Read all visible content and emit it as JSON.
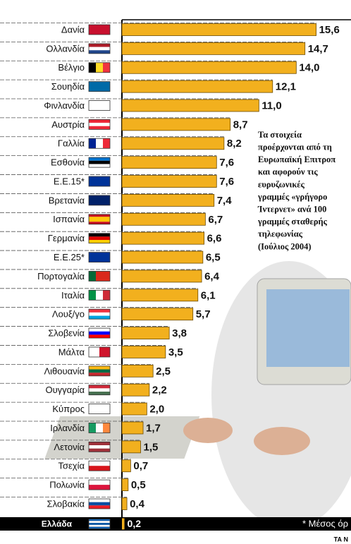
{
  "chart_data": {
    "type": "hbar",
    "categories": [
      "Δανία",
      "Ολλανδία",
      "Βέλγιο",
      "Σουηδία",
      "Φινλανδία",
      "Αυστρία",
      "Γαλλία",
      "Εσθονία",
      "Ε.Ε.15*",
      "Βρετανία",
      "Ισπανία",
      "Γερμανία",
      "Ε.Ε.25*",
      "Πορτογαλία",
      "Ιταλία",
      "Λουξ/γο",
      "Σλοβενία",
      "Μάλτα",
      "Λιθουανία",
      "Ουγγαρία",
      "Κύπρος",
      "Ιρλανδία",
      "Λετονία",
      "Τσεχία",
      "Πολωνία",
      "Σλοβακία"
    ],
    "values": [
      15.6,
      14.7,
      14.0,
      12.1,
      11.0,
      8.7,
      8.2,
      7.6,
      7.6,
      7.4,
      6.7,
      6.6,
      6.5,
      6.4,
      6.1,
      5.7,
      3.8,
      3.5,
      2.5,
      2.2,
      2.0,
      1.7,
      1.5,
      0.7,
      0.5,
      0.4
    ],
    "value_labels": [
      "15,6",
      "14,7",
      "14,0",
      "12,1",
      "11,0",
      "8,7",
      "8,2",
      "7,6",
      "7,6",
      "7,4",
      "6,7",
      "6,6",
      "6,5",
      "6,4",
      "6,1",
      "5,7",
      "3,8",
      "3,5",
      "2,5",
      "2,2",
      "2,0",
      "1,7",
      "1,5",
      "0,7",
      "0,5",
      "0,4"
    ],
    "highlight": {
      "category": "Ελλάδα",
      "value": 0.2,
      "value_label": "0,2"
    },
    "color": "#f2b01e",
    "xlim": [
      0,
      18
    ],
    "annotation": [
      "Τα στοιχεία",
      "προέρχονται από τη",
      "Ευρωπαϊκή Επιτροπ",
      "και αφορούν τις",
      "ευρυζωνικές",
      "γραμμές «γρήγορο",
      "Ίντερνετ» ανά 100",
      "γραμμές σταθερής",
      "τηλεφωνίας",
      "(Ιούλιος 2004)"
    ],
    "footnote": "* Μέσος όρ",
    "source": "ΤΑ Ν"
  }
}
